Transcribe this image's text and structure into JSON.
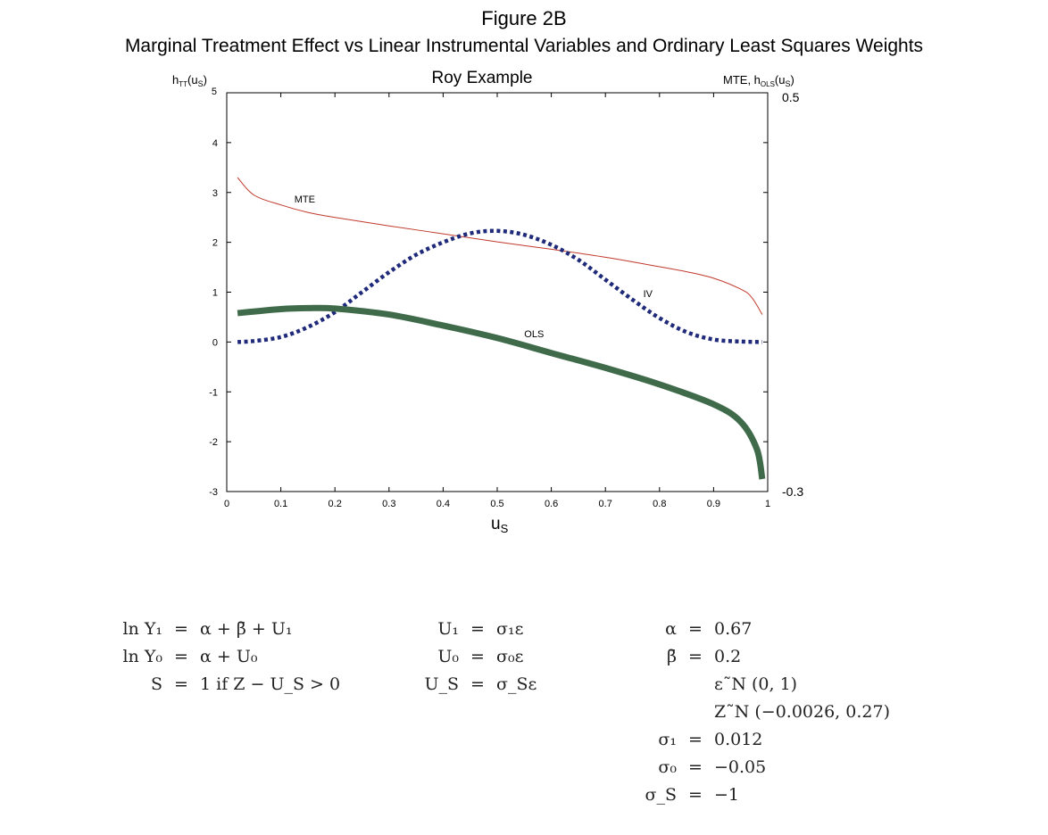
{
  "figure_title": "Figure 2B",
  "figure_subtitle": "Marginal Treatment Effect vs Linear Instrumental Variables and Ordinary Least Squares Weights",
  "chart_data": {
    "type": "line",
    "title": "Roy Example",
    "xlabel": "u",
    "xlabel_sub": "S",
    "y_left_label": "h",
    "y_left_label_sub": "TT",
    "y_left_label_arg": "(u",
    "y_left_label_arg_sub": "S",
    "y_left_label_close": ")",
    "y_right_label": "MTE, h",
    "y_right_label_sub": "OLS",
    "y_right_label_arg": "(u",
    "y_right_label_arg_sub": "S",
    "y_right_label_close": ")",
    "xlim": [
      0,
      1
    ],
    "ylim_left": [
      -3,
      5
    ],
    "ylim_right": [
      -0.3,
      0.5
    ],
    "x_ticks": [
      "0",
      "0.1",
      "0.2",
      "0.3",
      "0.4",
      "0.5",
      "0.6",
      "0.7",
      "0.8",
      "0.9",
      "1"
    ],
    "y_left_ticks": [
      "-3",
      "-2",
      "-1",
      "0",
      "1",
      "2",
      "3",
      "4",
      "5"
    ],
    "y_right_ticks": [
      "-0.3",
      "0.5"
    ],
    "grid": false,
    "legend": "none",
    "series": [
      {
        "name": "MTE",
        "style": "thin-solid",
        "color": "#c0392b",
        "x": [
          0.02,
          0.05,
          0.1,
          0.15,
          0.2,
          0.3,
          0.4,
          0.5,
          0.6,
          0.7,
          0.8,
          0.85,
          0.9,
          0.95,
          0.97,
          0.99
        ],
        "y": [
          3.3,
          2.95,
          2.75,
          2.6,
          2.5,
          2.33,
          2.17,
          2.01,
          1.86,
          1.7,
          1.51,
          1.41,
          1.28,
          1.06,
          0.9,
          0.55
        ]
      },
      {
        "name": "IV",
        "style": "dotted",
        "color": "#1f2a7a",
        "x": [
          0.02,
          0.05,
          0.1,
          0.15,
          0.2,
          0.25,
          0.3,
          0.35,
          0.4,
          0.45,
          0.5,
          0.55,
          0.6,
          0.65,
          0.7,
          0.75,
          0.8,
          0.85,
          0.9,
          0.95,
          0.99
        ],
        "y": [
          0.0,
          0.02,
          0.1,
          0.3,
          0.6,
          1.0,
          1.4,
          1.75,
          2.0,
          2.18,
          2.23,
          2.15,
          1.95,
          1.65,
          1.25,
          0.85,
          0.48,
          0.2,
          0.05,
          0.01,
          0.0
        ]
      },
      {
        "name": "OLS",
        "style": "thick-solid",
        "color": "#3f6b4a",
        "x": [
          0.02,
          0.1,
          0.15,
          0.2,
          0.3,
          0.4,
          0.5,
          0.6,
          0.7,
          0.8,
          0.9,
          0.95,
          0.98,
          0.99
        ],
        "y": [
          0.58,
          0.66,
          0.68,
          0.67,
          0.55,
          0.33,
          0.08,
          -0.22,
          -0.52,
          -0.85,
          -1.25,
          -1.6,
          -2.15,
          -2.75
        ]
      }
    ],
    "annotations": [
      {
        "text": "MTE",
        "x": 0.125,
        "y": 2.8
      },
      {
        "text": "IV",
        "x": 0.77,
        "y": 0.9
      },
      {
        "text": "OLS",
        "x": 0.55,
        "y": 0.1
      }
    ]
  },
  "equations": {
    "col1": [
      {
        "lhs": "ln Y₁",
        "op": "=",
        "rhs": "α + β̄ + U₁"
      },
      {
        "lhs": "ln Y₀",
        "op": "=",
        "rhs": "α + U₀"
      },
      {
        "lhs": "S",
        "op": "=",
        "rhs": "1 if Z − U_S > 0"
      }
    ],
    "col2": [
      {
        "lhs": "U₁",
        "op": "=",
        "rhs": "σ₁ε"
      },
      {
        "lhs": "U₀",
        "op": "=",
        "rhs": "σ₀ε"
      },
      {
        "lhs": "U_S",
        "op": "=",
        "rhs": "σ_Sε"
      }
    ],
    "col3": [
      {
        "lhs": "α",
        "op": "=",
        "rhs": "0.67"
      },
      {
        "lhs": "β̄",
        "op": "=",
        "rhs": "0.2"
      },
      {
        "lhs": "",
        "op": "",
        "rhs": "ε˜N (0, 1)"
      },
      {
        "lhs": "",
        "op": "",
        "rhs": "Z˜N (−0.0026, 0.27)"
      },
      {
        "lhs": "σ₁",
        "op": "=",
        "rhs": "0.012"
      },
      {
        "lhs": "σ₀",
        "op": "=",
        "rhs": "−0.05"
      },
      {
        "lhs": "σ_S",
        "op": "=",
        "rhs": "−1"
      }
    ]
  }
}
